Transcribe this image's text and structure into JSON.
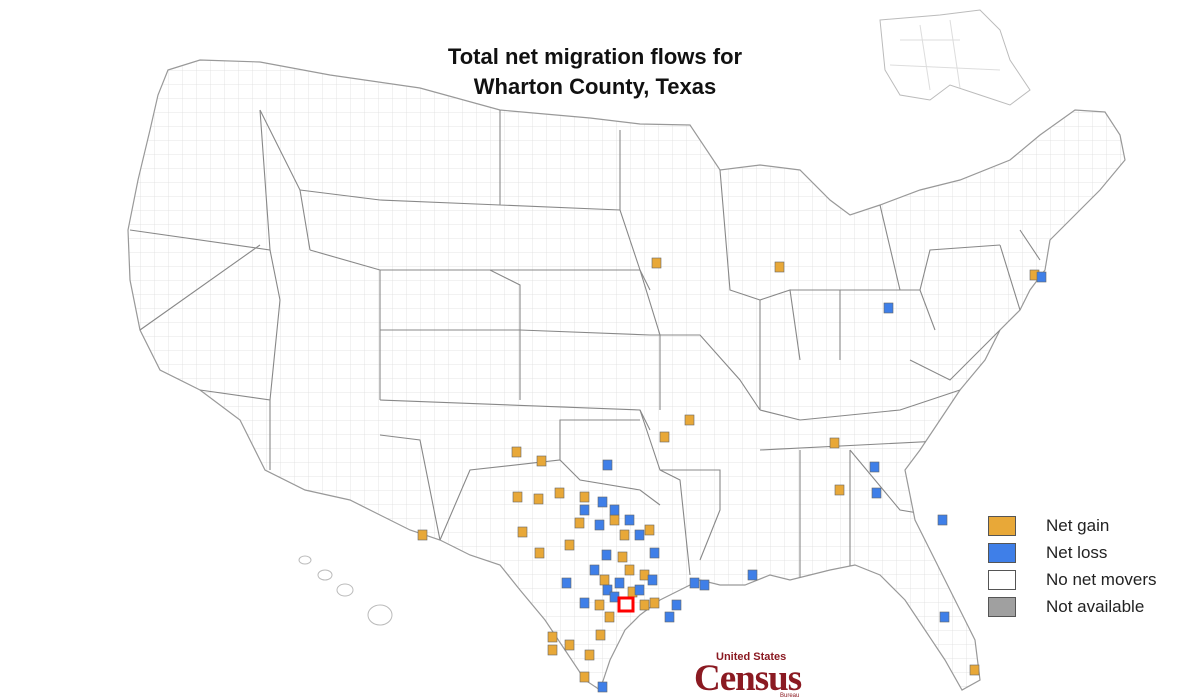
{
  "title_line1": "Total net migration flows for",
  "title_line2": "Wharton County, Texas",
  "legend": {
    "items": [
      {
        "label": "Net gain",
        "color": "#e8a838"
      },
      {
        "label": "Net loss",
        "color": "#3f7fe8"
      },
      {
        "label": "No net movers",
        "color": "#ffffff"
      },
      {
        "label": "Not available",
        "color": "#a0a0a0"
      }
    ]
  },
  "logo": {
    "top": "United States",
    "main": "Census",
    "bottom": "Bureau"
  },
  "colors": {
    "gain": "#e8a838",
    "loss": "#3f7fe8",
    "home": "#ff0000",
    "boundary": "#888888",
    "county_grid": "#dddddd"
  }
}
